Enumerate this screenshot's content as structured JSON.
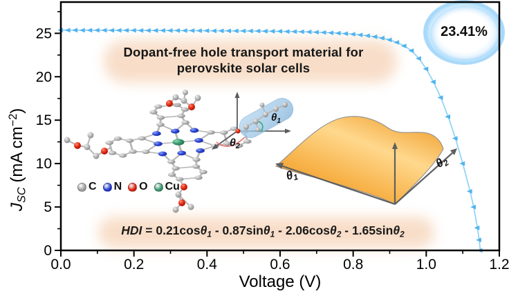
{
  "figure": {
    "title_lines": [
      "Dopant-free hole transport material for",
      "perovskite solar cells"
    ],
    "efficiency": "23.41%",
    "xlabel": "Voltage (V)",
    "ylabel_segments": [
      {
        "t": "J",
        "i": 1
      },
      {
        "t": "SC",
        "i": 1,
        "sub": 1
      },
      {
        "t": " (mA cm"
      },
      {
        "t": "−2",
        "sup": 1
      },
      {
        "t": ")"
      }
    ],
    "formula_segments": [
      {
        "t": "HDI",
        "i": 1
      },
      {
        "t": " = 0.21cos"
      },
      {
        "t": "θ",
        "i": 1
      },
      {
        "t": "1",
        "i": 1,
        "sub": 1
      },
      {
        "t": " - 0.87sin"
      },
      {
        "t": "θ",
        "i": 1
      },
      {
        "t": "1",
        "i": 1,
        "sub": 1
      },
      {
        "t": " - 2.06cos"
      },
      {
        "t": "θ",
        "i": 1
      },
      {
        "t": "2",
        "i": 1,
        "sub": 1
      },
      {
        "t": " - 1.65sin"
      },
      {
        "t": "θ",
        "i": 1
      },
      {
        "t": "2",
        "i": 1,
        "sub": 1
      }
    ],
    "theta1_segments": [
      {
        "t": "θ",
        "i": 1
      },
      {
        "t": "1",
        "i": 1,
        "sub": 1
      }
    ],
    "theta2_segments": [
      {
        "t": "θ",
        "i": 1
      },
      {
        "t": "2",
        "i": 1,
        "sub": 1
      }
    ],
    "legend_atoms": [
      {
        "symbol": "C",
        "color": "#9c9c9c"
      },
      {
        "symbol": "N",
        "color": "#2135cc"
      },
      {
        "symbol": "O",
        "color": "#d91e0a"
      },
      {
        "symbol": "Cu",
        "color": "#35916b"
      }
    ],
    "colors": {
      "curve_line": "#8ed1f7",
      "curve_marker": "#52b3ee",
      "axis": "#000000",
      "surface": "#f5a93e",
      "glow_peach": "#f7ddc9",
      "bubble_blue": "#a0d6fa"
    }
  },
  "chart_data": {
    "type": "line",
    "title": "",
    "xlabel": "Voltage (V)",
    "ylabel": "J_SC (mA cm^-2)",
    "xlim": [
      0,
      1.2
    ],
    "ylim": [
      0,
      28.6
    ],
    "grid": false,
    "legend_position": "none",
    "x_major_ticks": [
      0,
      0.2,
      0.4,
      0.6,
      0.8,
      1.0,
      1.2
    ],
    "x_minor_ticks": [
      0.1,
      0.3,
      0.5,
      0.7,
      0.9,
      1.1
    ],
    "y_major_ticks": [
      0,
      5,
      10,
      15,
      20,
      25
    ],
    "y_minor_ticks": [
      2.5,
      7.5,
      12.5,
      17.5,
      22.5,
      27.5
    ],
    "x_tick_decimals": 1,
    "y_tick_decimals": 0,
    "series": [
      {
        "name": "J-V curve",
        "marker": "left-triangle",
        "color": "#52b3ee",
        "points": [
          [
            0.0,
            25.36
          ],
          [
            0.02,
            25.36
          ],
          [
            0.04,
            25.36
          ],
          [
            0.06,
            25.35
          ],
          [
            0.08,
            25.35
          ],
          [
            0.1,
            25.35
          ],
          [
            0.12,
            25.35
          ],
          [
            0.14,
            25.34
          ],
          [
            0.16,
            25.34
          ],
          [
            0.18,
            25.34
          ],
          [
            0.2,
            25.34
          ],
          [
            0.22,
            25.33
          ],
          [
            0.24,
            25.33
          ],
          [
            0.26,
            25.33
          ],
          [
            0.28,
            25.33
          ],
          [
            0.3,
            25.32
          ],
          [
            0.32,
            25.32
          ],
          [
            0.34,
            25.31
          ],
          [
            0.36,
            25.31
          ],
          [
            0.38,
            25.3
          ],
          [
            0.4,
            25.3
          ],
          [
            0.42,
            25.29
          ],
          [
            0.44,
            25.29
          ],
          [
            0.46,
            25.28
          ],
          [
            0.48,
            25.28
          ],
          [
            0.5,
            25.27
          ],
          [
            0.52,
            25.27
          ],
          [
            0.54,
            25.26
          ],
          [
            0.56,
            25.25
          ],
          [
            0.58,
            25.24
          ],
          [
            0.6,
            25.23
          ],
          [
            0.62,
            25.21
          ],
          [
            0.64,
            25.2
          ],
          [
            0.66,
            25.18
          ],
          [
            0.68,
            25.16
          ],
          [
            0.7,
            25.13
          ],
          [
            0.72,
            25.1
          ],
          [
            0.74,
            25.06
          ],
          [
            0.76,
            25.02
          ],
          [
            0.78,
            24.96
          ],
          [
            0.8,
            24.9
          ],
          [
            0.82,
            24.82
          ],
          [
            0.84,
            24.72
          ],
          [
            0.86,
            24.6
          ],
          [
            0.88,
            24.45
          ],
          [
            0.9,
            24.25
          ],
          [
            0.92,
            23.95
          ],
          [
            0.94,
            23.55
          ],
          [
            0.96,
            23.0
          ],
          [
            0.98,
            22.1
          ],
          [
            1.0,
            20.9
          ],
          [
            1.02,
            19.4
          ],
          [
            1.04,
            17.6
          ],
          [
            1.06,
            15.4
          ],
          [
            1.08,
            12.9
          ],
          [
            1.1,
            10.0
          ],
          [
            1.12,
            6.8
          ],
          [
            1.13,
            5.0
          ],
          [
            1.14,
            2.6
          ],
          [
            1.145,
            1.2
          ],
          [
            1.148,
            0.0
          ]
        ]
      }
    ],
    "annotations": [
      {
        "text": "23.41%",
        "x": 1.1,
        "y": 26.9
      },
      {
        "text": "Dopant-free hole transport material for perovskite solar cells",
        "x": 0.54,
        "y": 23.0
      },
      {
        "text": "HDI = 0.21cosθ₁ - 0.87sinθ₁ - 2.06cosθ₂ - 1.65sinθ₂",
        "x": 0.54,
        "y": 2.1
      }
    ]
  }
}
